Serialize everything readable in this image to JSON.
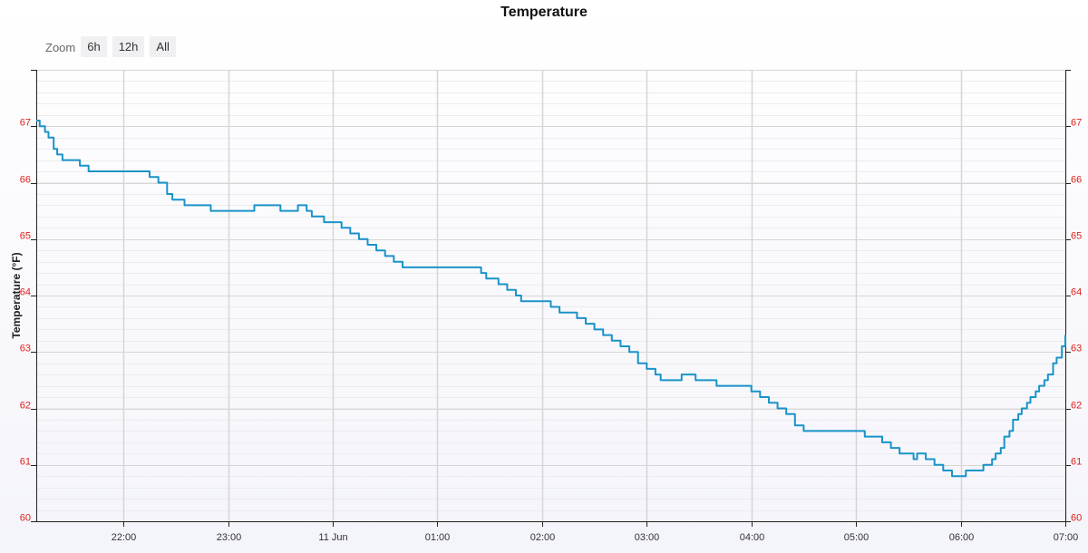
{
  "title": "Temperature",
  "zoom": {
    "label": "Zoom",
    "buttons": [
      "6h",
      "12h",
      "All"
    ]
  },
  "colors": {
    "line": "#1a93c8",
    "ytick": "#e0201a",
    "grid_major": "#d6d6d6",
    "grid_minor": "#ececec",
    "axis": "#222222"
  },
  "chart_data": {
    "type": "line",
    "title": "Temperature",
    "ylabel": "Temperature (°F)",
    "xlabel": "",
    "ylim": [
      60,
      68
    ],
    "xlim": [
      "21:10",
      "07:00"
    ],
    "y_ticks": [
      "60",
      "61",
      "62",
      "63",
      "64",
      "65",
      "66",
      "67"
    ],
    "x_ticks": [
      "22:00",
      "23:00",
      "11 Jun",
      "01:00",
      "02:00",
      "03:00",
      "04:00",
      "05:00",
      "06:00",
      "07:00"
    ],
    "grid": true,
    "y_axis_both_sides": true,
    "series": [
      {
        "x": [
          "21:10",
          "21:12",
          "21:15",
          "21:17",
          "21:20",
          "21:22",
          "21:25",
          "21:27",
          "21:30",
          "21:35",
          "21:40",
          "21:45",
          "21:50",
          "21:55",
          "22:00",
          "22:05",
          "22:10",
          "22:15",
          "22:20",
          "22:25",
          "22:28",
          "22:30",
          "22:32",
          "22:35",
          "22:40",
          "22:45",
          "22:48",
          "22:50",
          "22:52",
          "22:55",
          "23:00",
          "23:05",
          "23:10",
          "23:15",
          "23:20",
          "23:25",
          "23:30",
          "23:35",
          "23:40",
          "23:45",
          "23:48",
          "23:50",
          "23:52",
          "23:55",
          "00:00",
          "00:05",
          "00:10",
          "00:15",
          "00:20",
          "00:25",
          "00:30",
          "00:35",
          "00:40",
          "00:45",
          "00:50",
          "00:55",
          "01:00",
          "01:10",
          "01:20",
          "01:25",
          "01:28",
          "01:30",
          "01:35",
          "01:40",
          "01:45",
          "01:48",
          "01:50",
          "01:55",
          "02:00",
          "02:05",
          "02:10",
          "02:15",
          "02:20",
          "02:25",
          "02:30",
          "02:35",
          "02:40",
          "02:45",
          "02:50",
          "02:55",
          "03:00",
          "03:05",
          "03:08",
          "03:10",
          "03:15",
          "03:20",
          "03:25",
          "03:28",
          "03:30",
          "03:35",
          "03:40",
          "03:45",
          "03:50",
          "03:55",
          "04:00",
          "04:05",
          "04:10",
          "04:15",
          "04:20",
          "04:25",
          "04:30",
          "04:40",
          "04:50",
          "05:00",
          "05:05",
          "05:10",
          "05:15",
          "05:20",
          "05:25",
          "05:30",
          "05:33",
          "05:35",
          "05:37",
          "05:40",
          "05:45",
          "05:50",
          "05:55",
          "06:00",
          "06:03",
          "06:05",
          "06:10",
          "06:13",
          "06:15",
          "06:18",
          "06:20",
          "06:23",
          "06:25",
          "06:28",
          "06:30",
          "06:33",
          "06:35",
          "06:38",
          "06:40",
          "06:43",
          "06:45",
          "06:48",
          "06:50",
          "06:53",
          "06:55",
          "06:58",
          "07:00"
        ],
        "y": [
          67.1,
          67.0,
          66.9,
          66.8,
          66.6,
          66.5,
          66.4,
          66.4,
          66.4,
          66.3,
          66.2,
          66.2,
          66.2,
          66.2,
          66.2,
          66.2,
          66.2,
          66.1,
          66.0,
          65.8,
          65.7,
          65.7,
          65.7,
          65.6,
          65.6,
          65.6,
          65.6,
          65.5,
          65.5,
          65.5,
          65.5,
          65.5,
          65.5,
          65.6,
          65.6,
          65.6,
          65.5,
          65.5,
          65.6,
          65.5,
          65.4,
          65.4,
          65.4,
          65.3,
          65.3,
          65.2,
          65.1,
          65.0,
          64.9,
          64.8,
          64.7,
          64.6,
          64.5,
          64.5,
          64.5,
          64.5,
          64.5,
          64.5,
          64.5,
          64.4,
          64.3,
          64.3,
          64.2,
          64.1,
          64.0,
          63.9,
          63.9,
          63.9,
          63.9,
          63.8,
          63.7,
          63.7,
          63.6,
          63.5,
          63.4,
          63.3,
          63.2,
          63.1,
          63.0,
          62.8,
          62.7,
          62.6,
          62.5,
          62.5,
          62.5,
          62.6,
          62.6,
          62.5,
          62.5,
          62.5,
          62.4,
          62.4,
          62.4,
          62.4,
          62.3,
          62.2,
          62.1,
          62.0,
          61.9,
          61.7,
          61.6,
          61.6,
          61.6,
          61.6,
          61.5,
          61.5,
          61.4,
          61.3,
          61.2,
          61.2,
          61.1,
          61.2,
          61.2,
          61.1,
          61.0,
          60.9,
          60.8,
          60.8,
          60.9,
          60.9,
          60.9,
          61.0,
          61.0,
          61.1,
          61.2,
          61.3,
          61.5,
          61.6,
          61.8,
          61.9,
          62.0,
          62.1,
          62.2,
          62.3,
          62.4,
          62.5,
          62.6,
          62.8,
          62.9,
          63.1,
          63.3
        ]
      }
    ]
  }
}
